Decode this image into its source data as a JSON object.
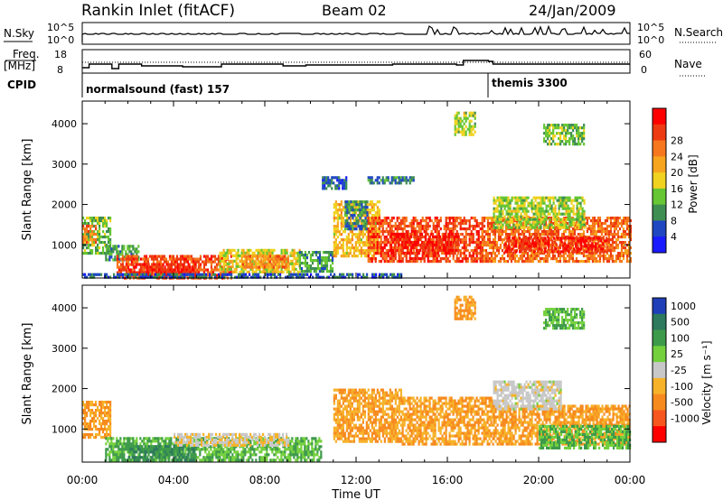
{
  "header": {
    "station": "Rankin Inlet (fitACF)",
    "beam": "Beam 02",
    "date": "24/Jan/2009"
  },
  "noise_panel": {
    "left_label": "N.Sky",
    "left_ticks": [
      "10^5",
      "10^0"
    ],
    "right_ticks": [
      "10^5",
      "10^0"
    ],
    "right_label": "N.Search",
    "right_label_style": "dotted"
  },
  "freq_panel": {
    "left_label_1": "Freq.",
    "left_label_2": "[MHz]",
    "left_ticks": [
      "18",
      "8"
    ],
    "right_ticks": [
      "60",
      "0"
    ],
    "right_label": "Nave",
    "right_label_style": "dotted"
  },
  "cpid_panel": {
    "label": "CPID",
    "modes": [
      {
        "name": "normalsound (fast) 157",
        "start_hour": 0
      },
      {
        "name": "themis 3300",
        "start_hour": 18
      }
    ]
  },
  "axes": {
    "ylabel": "Slant Range [km]",
    "yticks": [
      "1000",
      "2000",
      "3000",
      "4000"
    ],
    "xlabel": "Time UT",
    "xticks": [
      "00:00",
      "04:00",
      "08:00",
      "12:00",
      "16:00",
      "20:00",
      "00:00"
    ]
  },
  "power_scale": {
    "label": "Power [dB]",
    "ticks": [
      "4",
      "8",
      "12",
      "16",
      "20",
      "24",
      "28"
    ],
    "colors": [
      "#1a1aff",
      "#1f47c2",
      "#3e8e52",
      "#66c633",
      "#f0d21f",
      "#f7a51e",
      "#f7771e",
      "#ee3a12",
      "#ff0000"
    ]
  },
  "velocity_scale": {
    "label": "Velocity [m s⁻¹]",
    "ticks": [
      "1000",
      "500",
      "100",
      "25",
      "-25",
      "-100",
      "-500",
      "-1000"
    ],
    "colors": [
      "#1f3fb8",
      "#2d7a5e",
      "#3d9a4a",
      "#74d03d",
      "#c8c8c8",
      "#f7b22a",
      "#f78a1e",
      "#f7571e",
      "#ff0000"
    ]
  },
  "chart_data": {
    "type": "heatmap",
    "x_unit": "hour UT",
    "x_range": [
      0,
      24
    ],
    "y_range_km": [
      180,
      4560
    ],
    "power_regions": [
      {
        "t0": 0,
        "t1": 1.2,
        "r0": 800,
        "r1": 1700,
        "value": 12
      },
      {
        "t0": 0,
        "t1": 0.6,
        "r0": 1050,
        "r1": 1500,
        "value": 22
      },
      {
        "t0": 1,
        "t1": 2.5,
        "r0": 650,
        "r1": 1000,
        "value": 10
      },
      {
        "t0": 1.5,
        "t1": 6.5,
        "r0": 200,
        "r1": 750,
        "value": 26
      },
      {
        "t0": 2,
        "t1": 5,
        "r0": 250,
        "r1": 550,
        "value": 28
      },
      {
        "t0": 6,
        "t1": 9.5,
        "r0": 350,
        "r1": 900,
        "value": 16
      },
      {
        "t0": 7,
        "t1": 9,
        "r0": 450,
        "r1": 750,
        "value": 22
      },
      {
        "t0": 9.5,
        "t1": 11,
        "r0": 350,
        "r1": 850,
        "value": 10
      },
      {
        "t0": 11,
        "t1": 13,
        "r0": 700,
        "r1": 2100,
        "value": 18
      },
      {
        "t0": 11.5,
        "t1": 12.5,
        "r0": 1400,
        "r1": 2100,
        "value": 8
      },
      {
        "t0": 12.5,
        "t1": 17.5,
        "r0": 600,
        "r1": 1700,
        "value": 26
      },
      {
        "t0": 13.5,
        "t1": 16.5,
        "r0": 800,
        "r1": 1300,
        "value": 28
      },
      {
        "t0": 17.5,
        "t1": 24,
        "r0": 600,
        "r1": 1700,
        "value": 24
      },
      {
        "t0": 18.5,
        "t1": 23,
        "r0": 800,
        "r1": 1200,
        "value": 28
      },
      {
        "t0": 18,
        "t1": 22,
        "r0": 1400,
        "r1": 2200,
        "value": 14
      },
      {
        "t0": 16.3,
        "t1": 17.2,
        "r0": 3700,
        "r1": 4300,
        "value": 14
      },
      {
        "t0": 20.2,
        "t1": 22,
        "r0": 3500,
        "r1": 4000,
        "value": 12
      },
      {
        "t0": 12.5,
        "t1": 14.5,
        "r0": 2500,
        "r1": 2700,
        "value": 8
      },
      {
        "t0": 10.5,
        "t1": 11.6,
        "r0": 2400,
        "r1": 2700,
        "value": 6
      },
      {
        "t0": 0,
        "t1": 14,
        "r0": 180,
        "r1": 300,
        "value": 6
      }
    ],
    "velocity_regions": [
      {
        "t0": 0,
        "t1": 1.2,
        "r0": 800,
        "r1": 1700,
        "value": -100
      },
      {
        "t0": 1,
        "t1": 10.5,
        "r0": 200,
        "r1": 800,
        "value": 100
      },
      {
        "t0": 2,
        "t1": 5,
        "r0": 250,
        "r1": 600,
        "value": 500
      },
      {
        "t0": 4,
        "t1": 9,
        "r0": 600,
        "r1": 900,
        "value": -20
      },
      {
        "t0": 11,
        "t1": 14,
        "r0": 700,
        "r1": 2000,
        "value": -100
      },
      {
        "t0": 14,
        "t1": 18,
        "r0": 600,
        "r1": 1800,
        "value": -100
      },
      {
        "t0": 18,
        "t1": 24,
        "r0": 600,
        "r1": 1600,
        "value": -100
      },
      {
        "t0": 18,
        "t1": 21,
        "r0": 1500,
        "r1": 2200,
        "value": 0
      },
      {
        "t0": 20,
        "t1": 24,
        "r0": 500,
        "r1": 1100,
        "value": 100
      },
      {
        "t0": 16.3,
        "t1": 17.2,
        "r0": 3700,
        "r1": 4300,
        "value": -100
      },
      {
        "t0": 20.2,
        "t1": 22,
        "r0": 3500,
        "r1": 4000,
        "value": 100
      }
    ]
  }
}
